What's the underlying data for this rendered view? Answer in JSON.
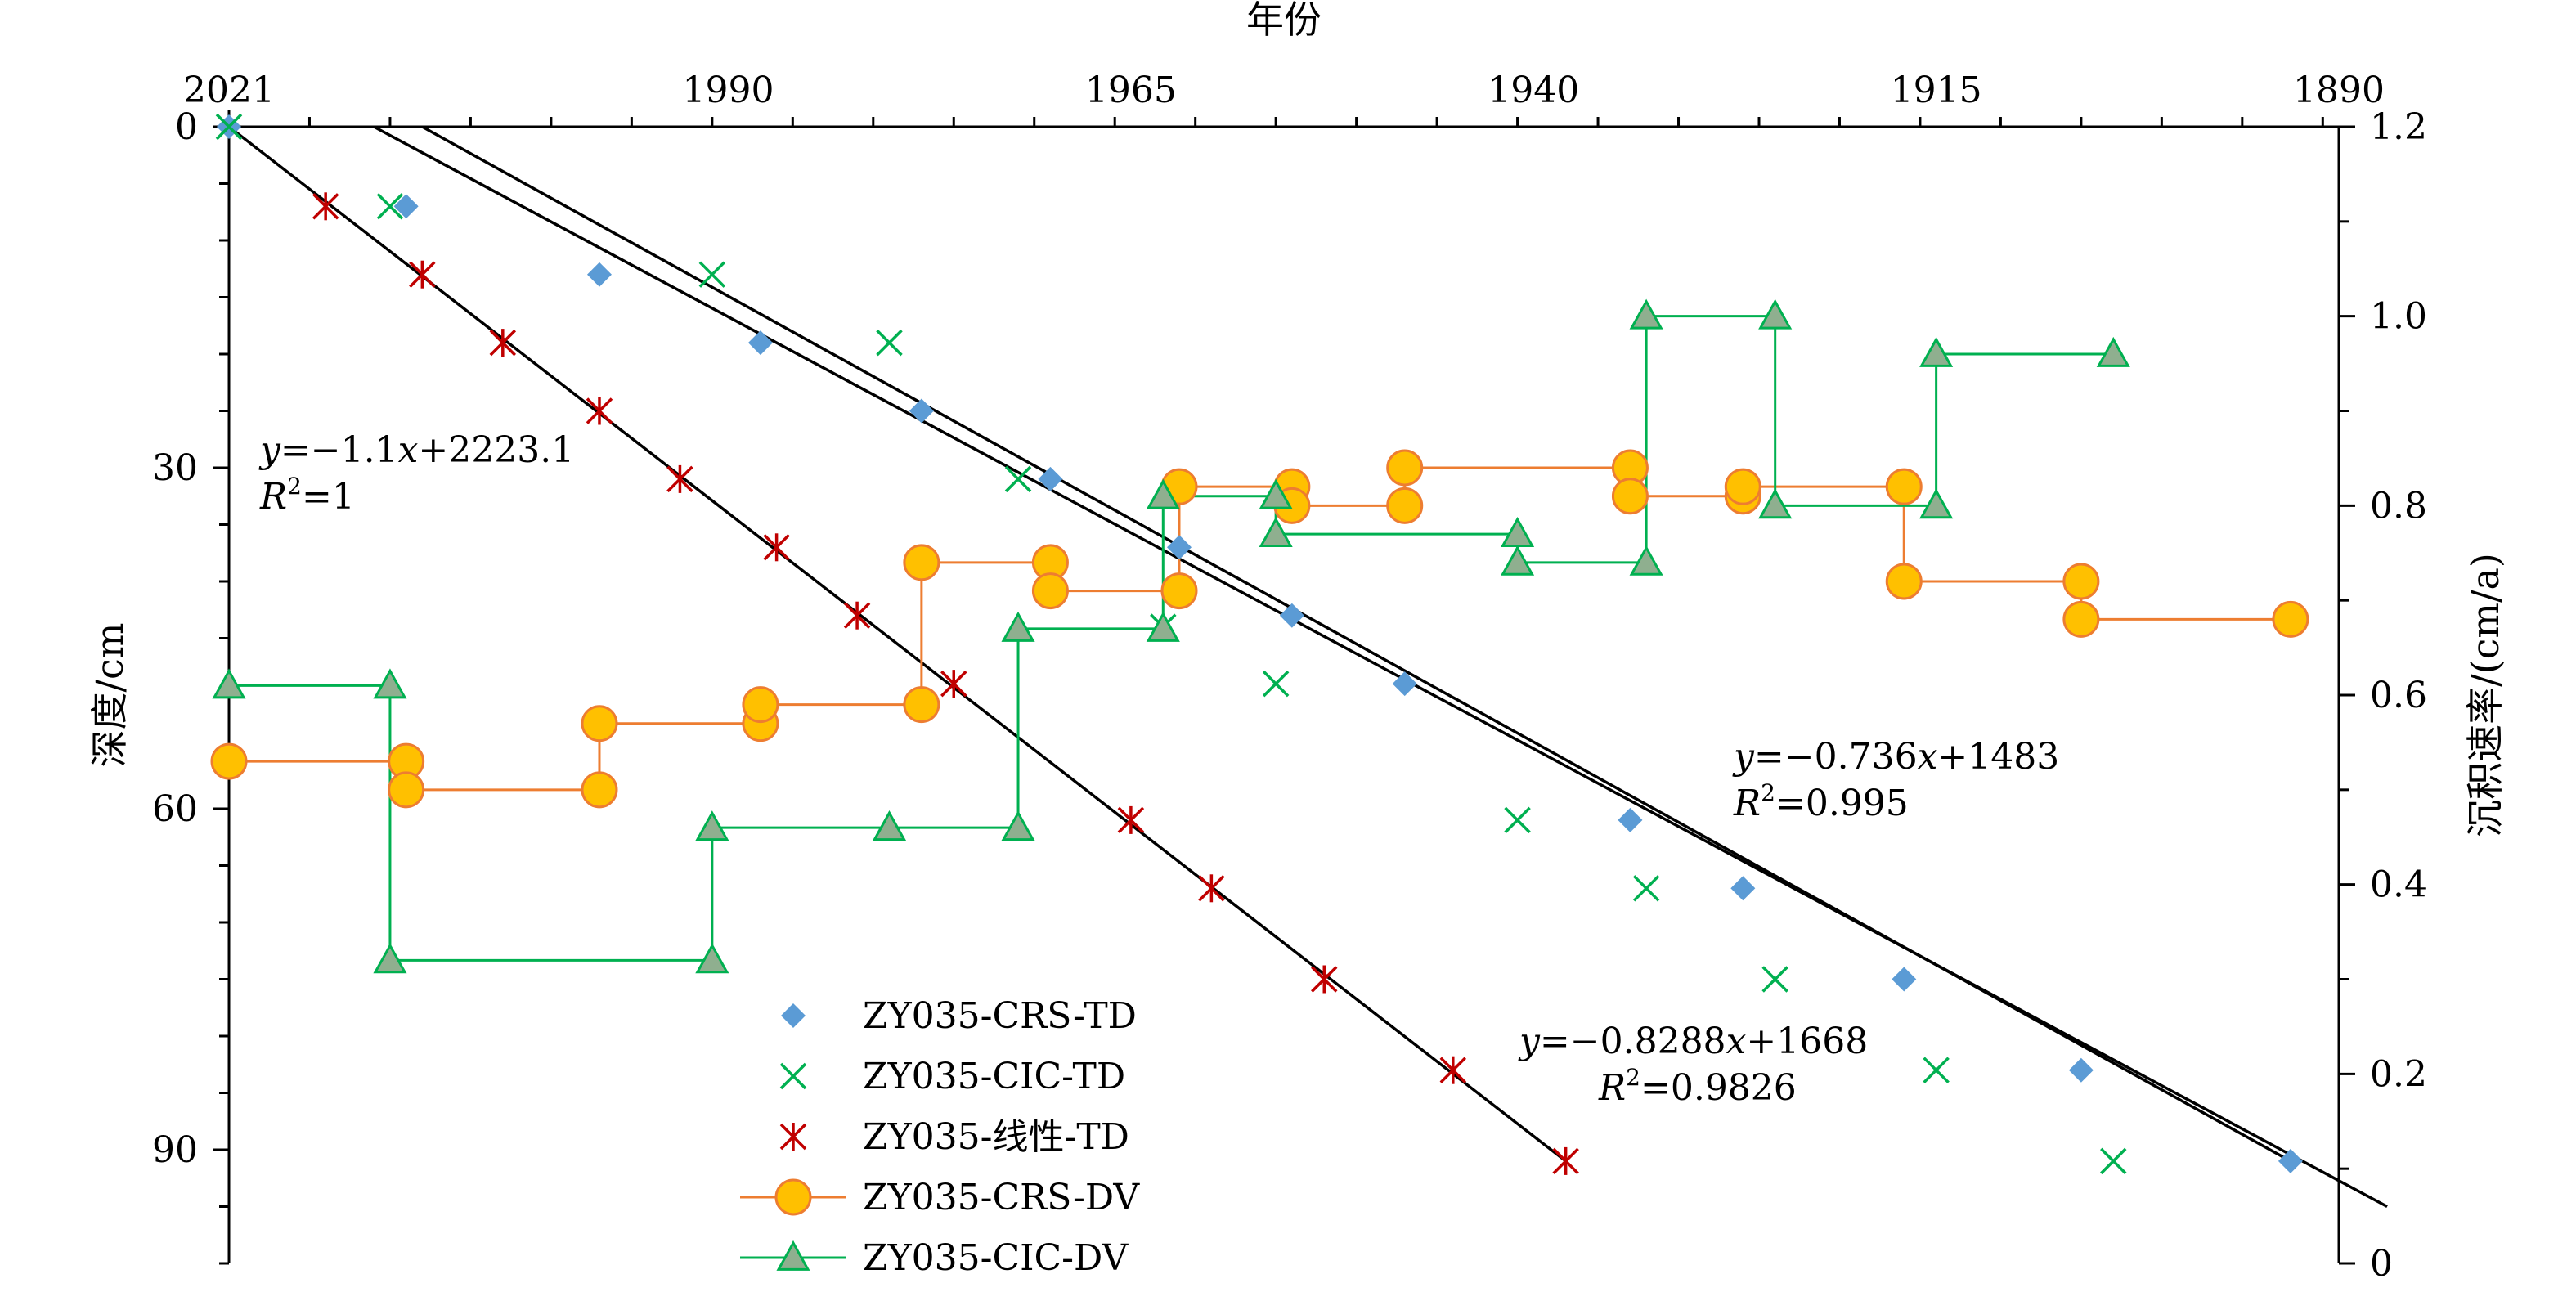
{
  "chart_data": {
    "type": "scatter",
    "x_axis": {
      "title": "年份",
      "position": "top",
      "reversed": true,
      "range": [
        2021,
        1890
      ],
      "ticks": [
        2021,
        1990,
        1965,
        1940,
        1915,
        1890
      ],
      "minor_step": 5
    },
    "y_axis_left": {
      "title": "深度/cm",
      "reversed": true,
      "range": [
        0,
        100
      ],
      "ticks": [
        0,
        30,
        60,
        90
      ],
      "minor_step": 5
    },
    "y_axis_right": {
      "title": "沉积速率/(cm/a)",
      "range": [
        0,
        1.2
      ],
      "ticks": [
        0,
        0.2,
        0.4,
        0.6,
        0.8,
        1.0,
        1.2
      ],
      "tick_labels": [
        "0",
        "0.2",
        "0.4",
        "0.6",
        "0.8",
        "1.0",
        "1.2"
      ],
      "minor_step": 0.1
    },
    "legend_position": "bottom-center",
    "grid": false,
    "series": [
      {
        "name": "ZY035-CRS-TD",
        "axis": "left",
        "marker": "diamond",
        "color": "#5b9bd5",
        "points": [
          [
            2021,
            0
          ],
          [
            2010,
            7
          ],
          [
            1998,
            13
          ],
          [
            1988,
            19
          ],
          [
            1978,
            25
          ],
          [
            1970,
            31
          ],
          [
            1962,
            37
          ],
          [
            1955,
            43
          ],
          [
            1948,
            49
          ],
          [
            1934,
            61
          ],
          [
            1927,
            67
          ],
          [
            1917,
            75
          ],
          [
            1906,
            83
          ],
          [
            1893,
            91
          ]
        ]
      },
      {
        "name": "ZY035-CIC-TD",
        "axis": "left",
        "marker": "x",
        "color": "#00b050",
        "points": [
          [
            2021,
            0
          ],
          [
            2011,
            7
          ],
          [
            1991,
            13
          ],
          [
            1980,
            19
          ],
          [
            1972,
            31
          ],
          [
            1963,
            44
          ],
          [
            1956,
            49
          ],
          [
            1941,
            61
          ],
          [
            1933,
            67
          ],
          [
            1925,
            75
          ],
          [
            1915,
            83
          ],
          [
            1904,
            91
          ]
        ]
      },
      {
        "name": "ZY035-线性-TD",
        "axis": "left",
        "marker": "star",
        "color": "#c00000",
        "points": [
          [
            2015,
            7
          ],
          [
            2009,
            13
          ],
          [
            2004,
            19
          ],
          [
            1998,
            25
          ],
          [
            1993,
            31
          ],
          [
            1987,
            37
          ],
          [
            1982,
            43
          ],
          [
            1976,
            49
          ],
          [
            1965,
            61
          ],
          [
            1960,
            67
          ],
          [
            1953,
            75
          ],
          [
            1945,
            83
          ],
          [
            1938,
            91
          ]
        ]
      },
      {
        "name": "ZY035-CRS-DV",
        "axis": "right",
        "marker": "circle",
        "color": "#ed7d31",
        "fill": "#ffc000",
        "step": true,
        "points": [
          [
            2021,
            0.53
          ],
          [
            2010,
            0.53
          ],
          [
            2010,
            0.5
          ],
          [
            1998,
            0.5
          ],
          [
            1998,
            0.57
          ],
          [
            1988,
            0.57
          ],
          [
            1988,
            0.59
          ],
          [
            1978,
            0.59
          ],
          [
            1978,
            0.74
          ],
          [
            1970,
            0.74
          ],
          [
            1970,
            0.71
          ],
          [
            1962,
            0.71
          ],
          [
            1962,
            0.82
          ],
          [
            1955,
            0.82
          ],
          [
            1955,
            0.8
          ],
          [
            1948,
            0.8
          ],
          [
            1948,
            0.84
          ],
          [
            1934,
            0.84
          ],
          [
            1934,
            0.81
          ],
          [
            1927,
            0.81
          ],
          [
            1927,
            0.82
          ],
          [
            1917,
            0.82
          ],
          [
            1917,
            0.72
          ],
          [
            1906,
            0.72
          ],
          [
            1906,
            0.68
          ],
          [
            1893,
            0.68
          ]
        ]
      },
      {
        "name": "ZY035-CIC-DV",
        "axis": "right",
        "marker": "triangle",
        "color": "#00b050",
        "fill": "#8faf8f",
        "step": true,
        "points": [
          [
            2021,
            0.61
          ],
          [
            2011,
            0.61
          ],
          [
            2011,
            0.32
          ],
          [
            1991,
            0.32
          ],
          [
            1991,
            0.46
          ],
          [
            1980,
            0.46
          ],
          [
            1980,
            0.46
          ],
          [
            1972,
            0.46
          ],
          [
            1972,
            0.67
          ],
          [
            1963,
            0.67
          ],
          [
            1963,
            0.81
          ],
          [
            1956,
            0.81
          ],
          [
            1956,
            0.77
          ],
          [
            1941,
            0.77
          ],
          [
            1941,
            0.74
          ],
          [
            1933,
            0.74
          ],
          [
            1933,
            1.0
          ],
          [
            1925,
            1.0
          ],
          [
            1925,
            0.8
          ],
          [
            1915,
            0.8
          ],
          [
            1915,
            0.96
          ],
          [
            1904,
            0.96
          ]
        ]
      }
    ],
    "trendlines": [
      {
        "series": "ZY035-线性-TD",
        "from": [
          2021,
          0
        ],
        "to": [
          1938,
          91
        ],
        "equation": {
          "y": "y",
          "mid": "=−1.1",
          "x": "x",
          "rest": "+2223.1"
        },
        "r2": {
          "r": "R",
          "sup": "2",
          "rest": "=1"
        }
      },
      {
        "series": "ZY035-CIC-TD",
        "from": [
          2012,
          0
        ],
        "to": [
          1887,
          95
        ],
        "equation": {
          "y": "y",
          "mid": "=−0.8288",
          "x": "x",
          "rest": "+1668"
        },
        "r2": {
          "r": "R",
          "sup": "2",
          "rest": "=0.9826"
        }
      },
      {
        "series": "ZY035-CRS-TD",
        "from": [
          2009,
          0
        ],
        "to": [
          1893,
          91
        ],
        "equation": {
          "y": "y",
          "mid": "=−0.736",
          "x": "x",
          "rest": "+1483"
        },
        "r2": {
          "r": "R",
          "sup": "2",
          "rest": "=0.995"
        }
      }
    ]
  }
}
